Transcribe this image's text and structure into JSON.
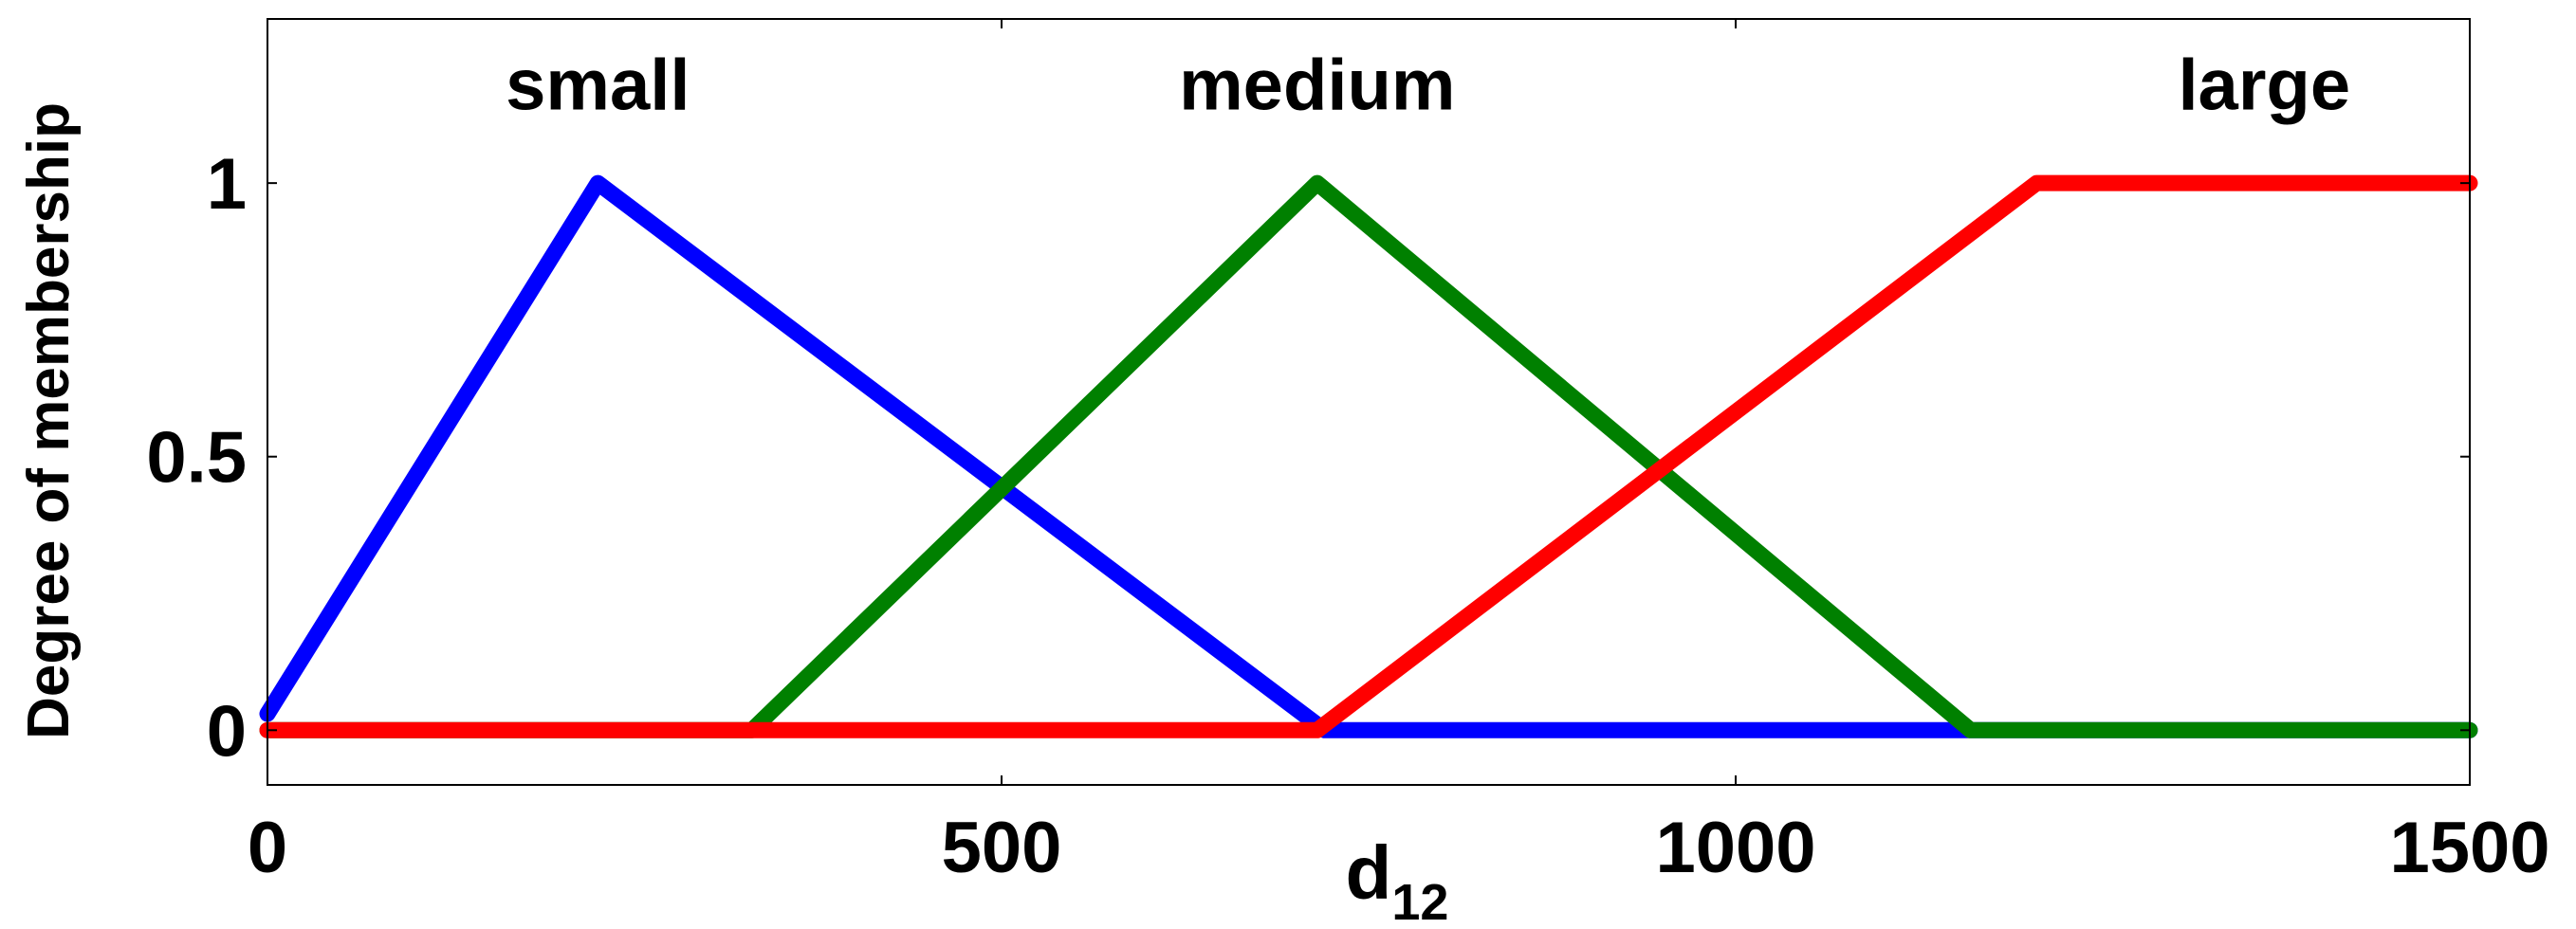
{
  "chart_data": {
    "type": "line",
    "xlabel": "d",
    "xlabel_subscript": "12",
    "ylabel": "Degree of membership",
    "xlim": [
      0,
      1500
    ],
    "ylim": [
      -0.1,
      1.3
    ],
    "xticks": [
      0,
      500,
      1000,
      1500
    ],
    "xtick_labels": [
      "0",
      "500",
      "1000",
      "1500"
    ],
    "yticks": [
      0,
      0.5,
      1
    ],
    "ytick_labels": [
      "0",
      "0.5",
      "1"
    ],
    "grid": false,
    "legend": "none",
    "series": [
      {
        "name": "small",
        "color": "#0000ff",
        "points": [
          [
            0,
            0.03
          ],
          [
            225,
            1
          ],
          [
            720,
            0
          ],
          [
            1500,
            0
          ]
        ],
        "label_x": 225,
        "label_y": 1.18
      },
      {
        "name": "medium",
        "color": "#008000",
        "points": [
          [
            0,
            0
          ],
          [
            330,
            0
          ],
          [
            715,
            1
          ],
          [
            1160,
            0
          ],
          [
            1500,
            0
          ]
        ],
        "label_x": 715,
        "label_y": 1.18
      },
      {
        "name": "large",
        "color": "#ff0000",
        "points": [
          [
            0,
            0
          ],
          [
            715,
            0
          ],
          [
            1205,
            1
          ],
          [
            1500,
            1
          ]
        ],
        "label_x": 1360,
        "label_y": 1.18
      }
    ]
  }
}
